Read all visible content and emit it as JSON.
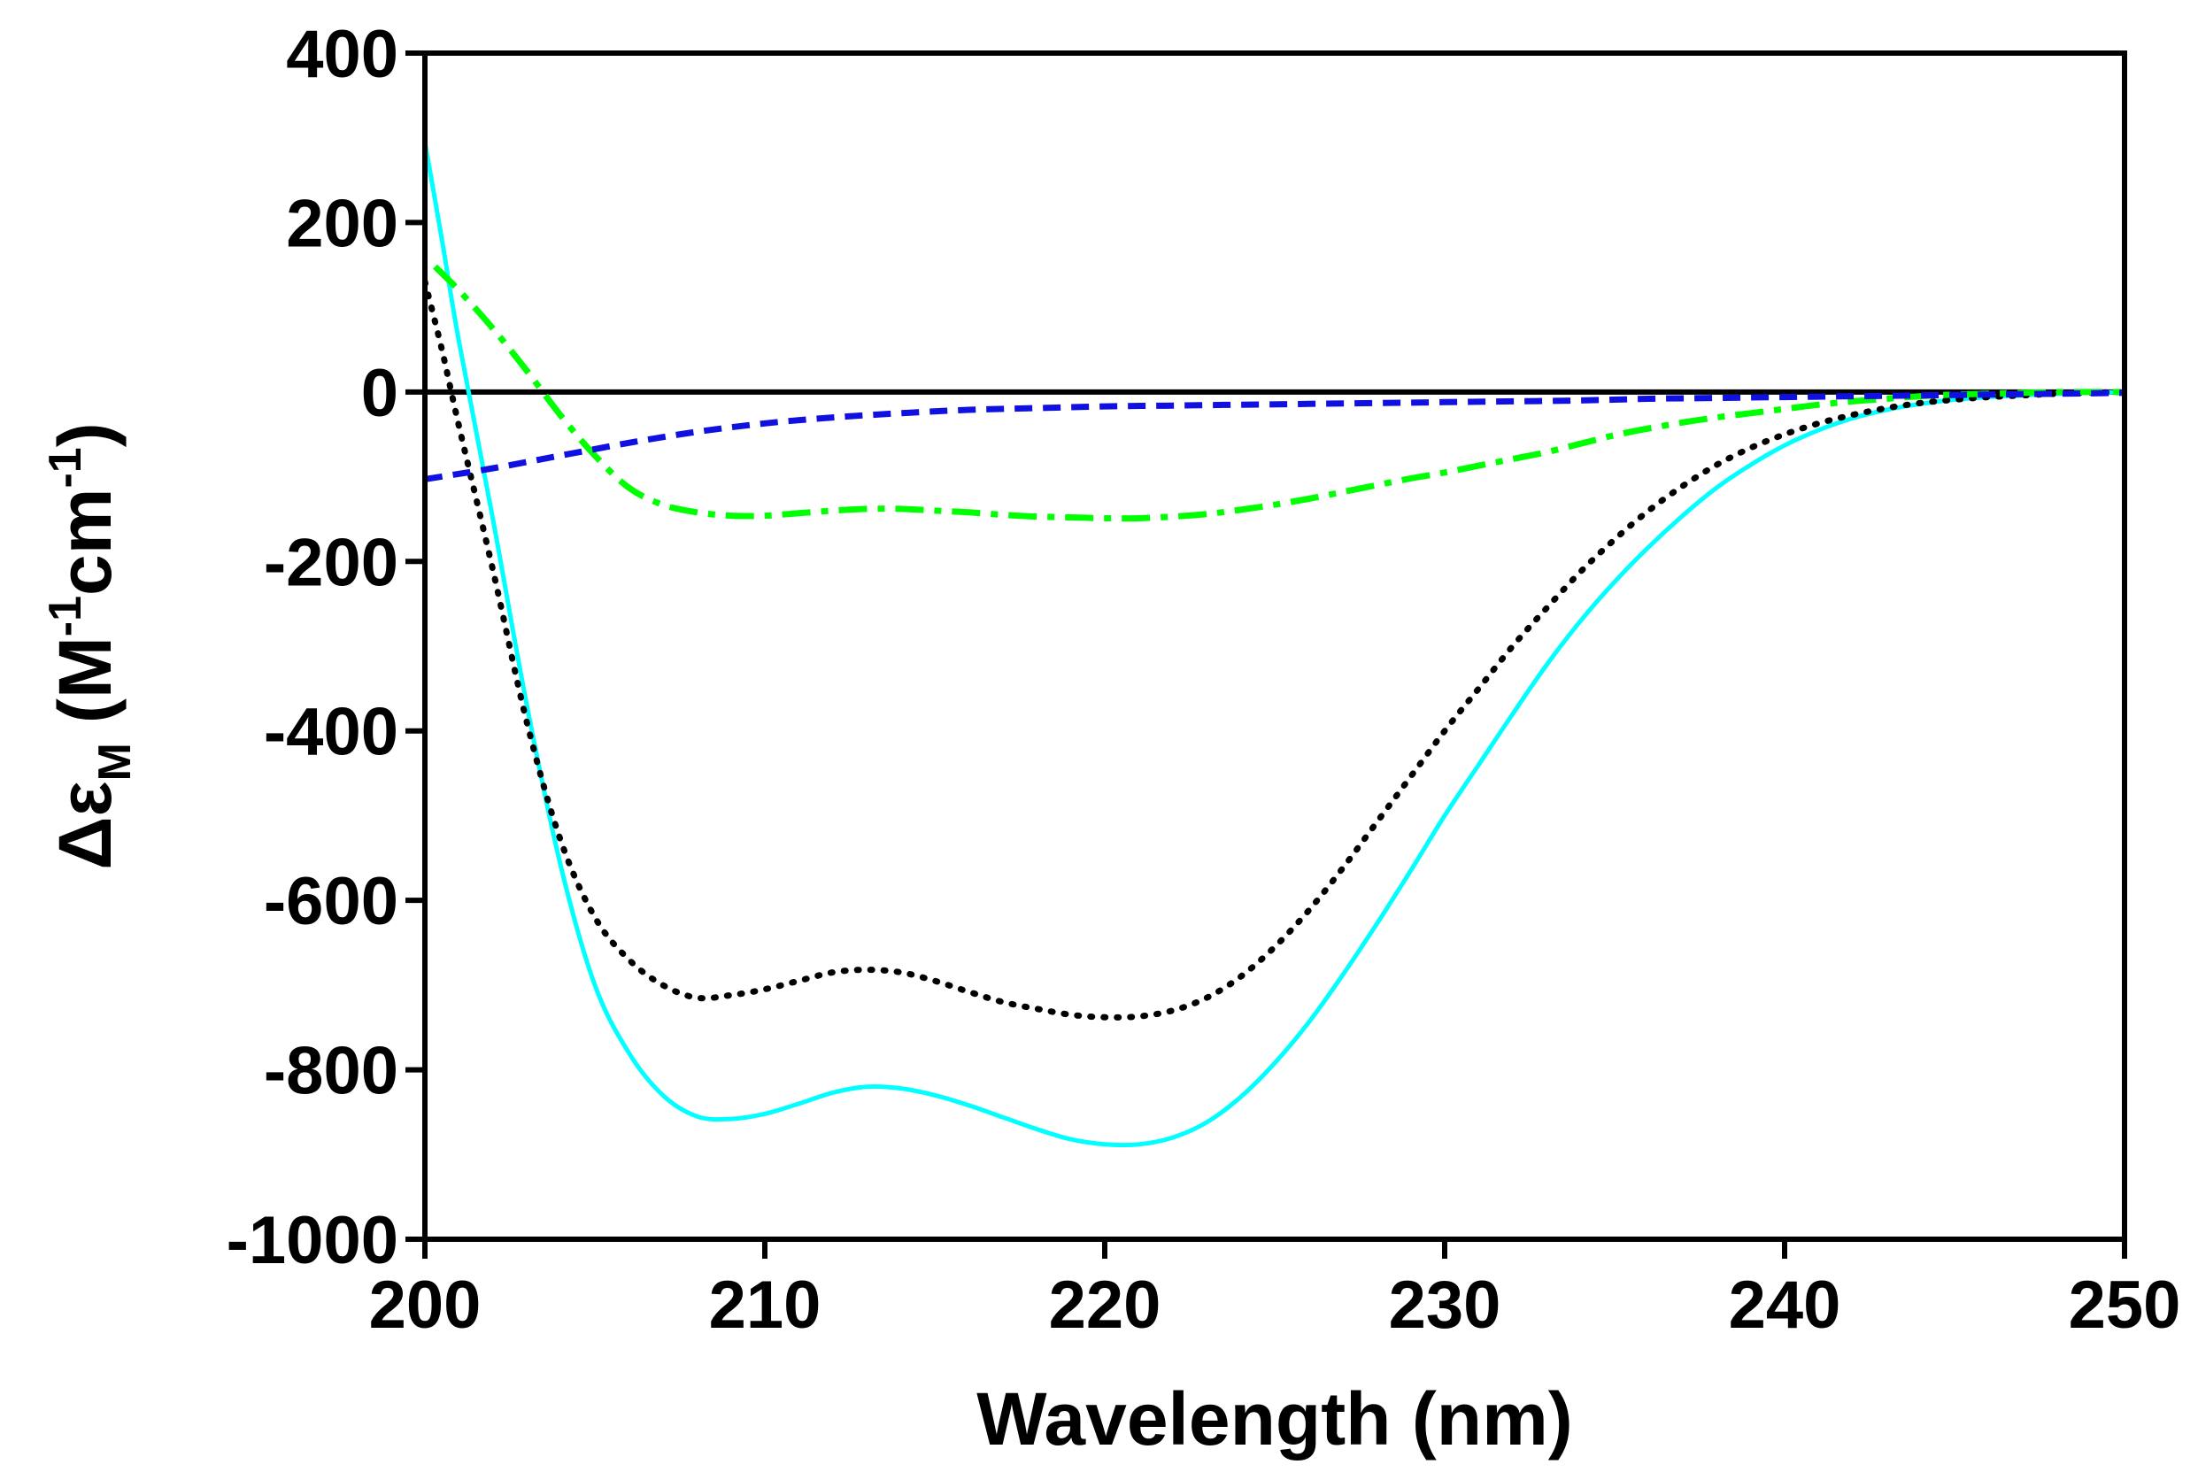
{
  "chart_data": {
    "type": "line",
    "title": "",
    "xlabel": "Wavelength (nm)",
    "ylabel": {
      "symbol": "Δε",
      "subscript": "M",
      "units_open": "(M",
      "superscript_1": "-1",
      "units_mid": "cm",
      "superscript_2": "-1",
      "units_close": ")"
    },
    "xlim": [
      200,
      250
    ],
    "ylim": [
      -1000,
      400
    ],
    "x_ticks": [
      200,
      210,
      220,
      230,
      240,
      250
    ],
    "y_ticks": [
      400,
      200,
      0,
      -200,
      -400,
      -600,
      -800,
      -1000
    ],
    "zero_line": true,
    "grid": false,
    "series": [
      {
        "name": "solid cyan",
        "color": "#00FFFF",
        "style": "solid",
        "x": [
          200,
          200.5,
          201,
          202,
          203,
          204,
          205,
          206,
          207,
          208,
          209,
          210,
          211,
          212,
          213,
          214,
          215,
          216,
          217,
          218,
          219,
          220,
          221,
          222,
          223,
          224,
          225,
          226,
          227,
          228,
          229,
          230,
          231,
          232,
          233,
          234,
          235,
          236,
          237,
          238,
          239,
          240,
          241,
          242,
          243,
          244,
          245,
          246,
          247,
          248,
          249,
          250
        ],
        "values": [
          295,
          180,
          60,
          -150,
          -370,
          -560,
          -700,
          -780,
          -830,
          -855,
          -858,
          -852,
          -840,
          -827,
          -820,
          -822,
          -830,
          -842,
          -856,
          -870,
          -882,
          -888,
          -888,
          -880,
          -862,
          -832,
          -792,
          -744,
          -688,
          -628,
          -565,
          -500,
          -440,
          -380,
          -322,
          -270,
          -224,
          -183,
          -146,
          -113,
          -86,
          -63,
          -45,
          -31,
          -21,
          -14,
          -9,
          -6,
          -4,
          -2,
          -1,
          0
        ]
      },
      {
        "name": "dotted black",
        "color": "#000000",
        "style": "dotted",
        "x": [
          200,
          200.5,
          201,
          202,
          203,
          204,
          205,
          206,
          207,
          208,
          209,
          210,
          211,
          212,
          213,
          214,
          215,
          216,
          217,
          218,
          219,
          220,
          221,
          222,
          223,
          224,
          225,
          226,
          227,
          228,
          229,
          230,
          231,
          232,
          233,
          234,
          235,
          236,
          237,
          238,
          239,
          240,
          241,
          242,
          243,
          244,
          245,
          246,
          247,
          248,
          249,
          250
        ],
        "values": [
          130,
          50,
          -40,
          -210,
          -390,
          -530,
          -620,
          -670,
          -700,
          -715,
          -712,
          -705,
          -695,
          -685,
          -682,
          -685,
          -695,
          -708,
          -720,
          -728,
          -735,
          -738,
          -737,
          -730,
          -715,
          -690,
          -655,
          -612,
          -562,
          -508,
          -454,
          -400,
          -350,
          -300,
          -255,
          -212,
          -174,
          -140,
          -111,
          -86,
          -66,
          -50,
          -37,
          -27,
          -19,
          -13,
          -9,
          -6,
          -4,
          -2,
          -1,
          0
        ]
      },
      {
        "name": "dash-dot green",
        "color": "#00FF00",
        "style": "dashdot",
        "x": [
          200.3,
          201,
          202,
          203,
          204,
          205,
          206,
          207,
          208,
          209,
          210,
          211,
          212,
          213,
          214,
          215,
          216,
          217,
          218,
          219,
          220,
          221,
          222,
          223,
          224,
          225,
          226,
          227,
          228,
          229,
          230,
          231,
          232,
          233,
          234,
          235,
          236,
          237,
          238,
          239,
          240,
          241,
          242,
          243,
          244,
          245,
          246,
          247,
          248,
          249,
          250
        ],
        "values": [
          148,
          120,
          75,
          25,
          -28,
          -75,
          -113,
          -133,
          -142,
          -146,
          -146,
          -143,
          -140,
          -138,
          -138,
          -140,
          -142,
          -145,
          -147,
          -148,
          -149,
          -149,
          -147,
          -144,
          -139,
          -133,
          -126,
          -118,
          -110,
          -102,
          -95,
          -87,
          -79,
          -71,
          -61,
          -51,
          -43,
          -36,
          -30,
          -25,
          -20,
          -15,
          -11,
          -8,
          -5,
          -3,
          -2,
          -1,
          0,
          0,
          0
        ]
      },
      {
        "name": "dashed blue",
        "color": "#1010E0",
        "style": "dashed",
        "x": [
          200,
          202,
          204,
          206,
          208,
          210,
          212,
          214,
          216,
          218,
          220,
          222,
          224,
          226,
          228,
          230,
          232,
          234,
          236,
          238,
          240,
          242,
          244,
          246,
          248,
          250
        ],
        "values": [
          -103,
          -90,
          -75,
          -60,
          -47,
          -37,
          -30,
          -25,
          -21,
          -19,
          -17,
          -16,
          -15,
          -14,
          -13,
          -12,
          -11,
          -10,
          -8,
          -7,
          -6,
          -5,
          -4,
          -3,
          -2,
          -1
        ]
      }
    ]
  }
}
